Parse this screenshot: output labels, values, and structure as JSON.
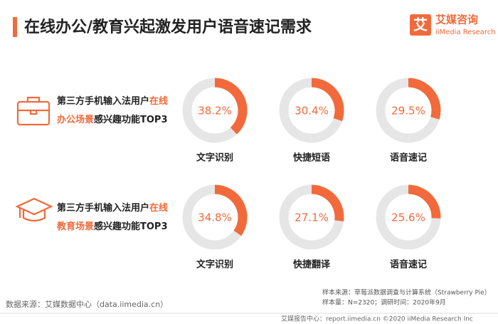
{
  "header": {
    "title": "在线办公/教育兴起激发用户语音速记需求",
    "logo": "艾媒咨询",
    "logo_icon": "艾",
    "logo_sub": "iiMedia Research"
  },
  "chart_data": [
    {
      "type": "donut",
      "label_lines": [
        [
          {
            "text": "第三方手机输入法用户",
            "highlight": false
          },
          {
            "text": "在线",
            "highlight": true
          }
        ],
        [
          {
            "text": "办公场景",
            "highlight": true
          },
          {
            "text": "感兴趣功能TOP3",
            "highlight": false
          }
        ]
      ],
      "categories": [
        "文字识别",
        "快捷短语",
        "语音速记"
      ],
      "values": [
        38.2,
        30.4,
        29.5
      ],
      "value_labels": [
        "38.2%",
        "30.4%",
        "29.5%"
      ],
      "color": "#f26a3b",
      "track_color": "#e6e6e6"
    },
    {
      "type": "donut",
      "label_lines": [
        [
          {
            "text": "第三方手机输入法用户",
            "highlight": false
          },
          {
            "text": "在线",
            "highlight": true
          }
        ],
        [
          {
            "text": "教育场景",
            "highlight": true
          },
          {
            "text": "感兴趣功能TOP3",
            "highlight": false
          }
        ]
      ],
      "categories": [
        "文字识别",
        "快捷翻译",
        "语音速记"
      ],
      "values": [
        34.8,
        27.1,
        25.6
      ],
      "value_labels": [
        "34.8%",
        "27.1%",
        "25.6%"
      ],
      "color": "#f26a3b",
      "track_color": "#e6e6e6"
    }
  ],
  "footer": {
    "source": "数据来源：艾媒数据中心（data.iimedia.cn）",
    "sample_source": "样本来源：草莓派数据调查与计算系统（Strawberry Pie）",
    "sample_size": "样本量：N=2320；调研时间：2020年9月",
    "report": "艾媒报告中心：report.iimedia.cn  ©2020 iiMedia Research Inc"
  }
}
